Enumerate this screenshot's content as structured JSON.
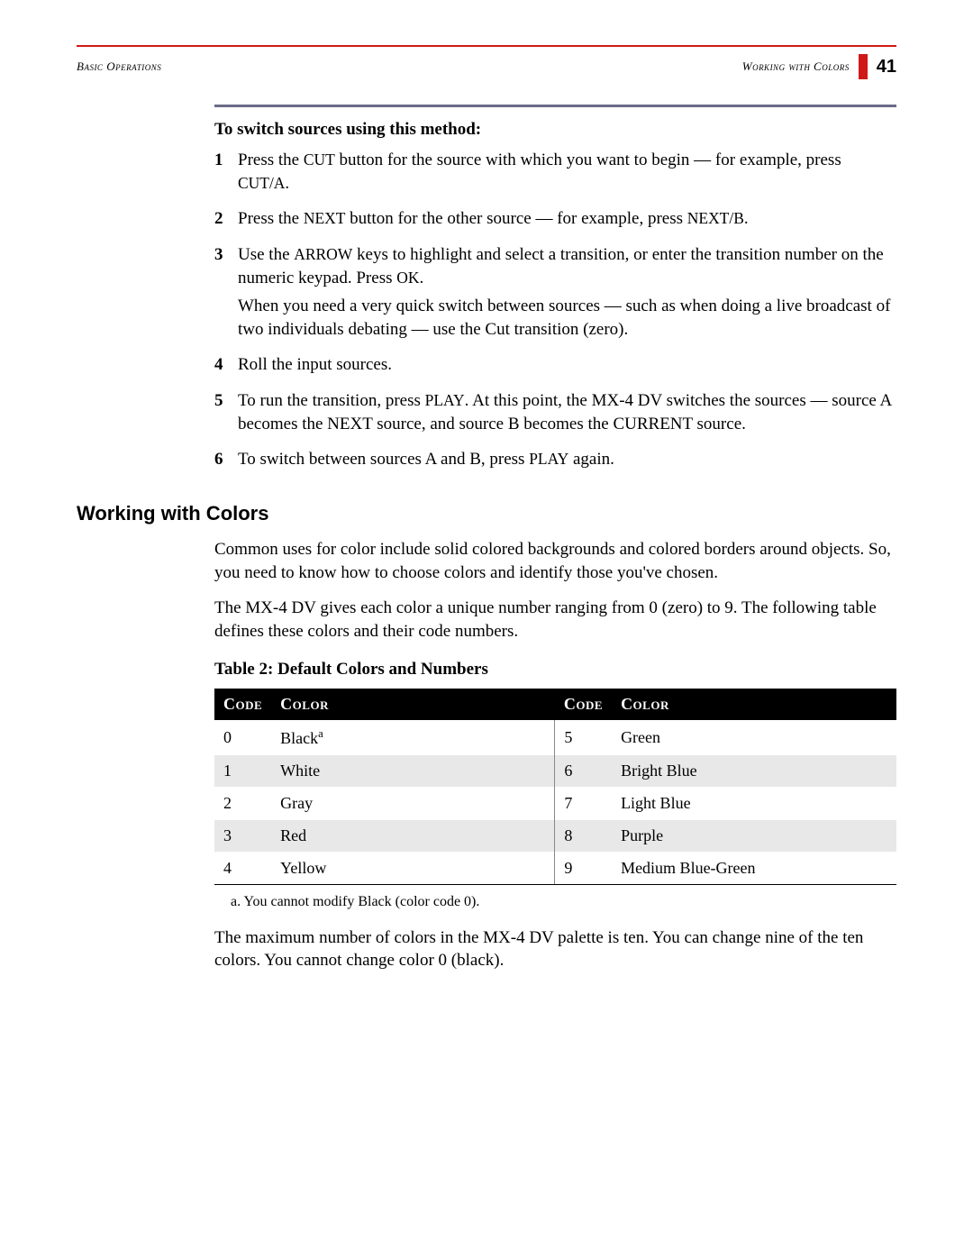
{
  "header": {
    "left": "Basic Operations",
    "right": "Working with Colors",
    "page_number": "41",
    "accent_color": "#d01818"
  },
  "instructions": {
    "title": "To switch sources using this method:",
    "steps": [
      {
        "num": "1",
        "paras": [
          "Press the <sc>CUT</sc> button for the source with which you want to begin — for example, press <sc>CUT/A</sc>."
        ]
      },
      {
        "num": "2",
        "paras": [
          "Press the <sc>NEXT</sc> button for the other source — for example, press <sc>NEXT/B</sc>."
        ]
      },
      {
        "num": "3",
        "paras": [
          "Use the <sc>ARROW</sc> keys to highlight and select a transition, or enter the transition number on the numeric keypad. Press <sc>OK</sc>.",
          "When you need a very quick switch between sources — such as when doing a live broadcast of two individuals debating — use the Cut transition (zero)."
        ]
      },
      {
        "num": "4",
        "paras": [
          "Roll the input sources."
        ]
      },
      {
        "num": "5",
        "paras": [
          "To run the transition, press <sc>PLAY</sc>. At this point, the MX-4 DV switches the sources — source A becomes the NEXT source, and source B becomes the CURRENT source."
        ]
      },
      {
        "num": "6",
        "paras": [
          "To switch between sources A and B, press <sc>PLAY</sc> again."
        ]
      }
    ]
  },
  "section": {
    "heading": "Working with Colors",
    "paras": [
      "Common uses for color include solid colored backgrounds and colored borders around objects. So, you need to know how to choose colors and identify those you've chosen.",
      "The MX-4 DV gives each color a unique number ranging from 0 (zero) to 9. The following table defines these colors and their code numbers."
    ],
    "table_caption": "Table 2: Default Colors and Numbers",
    "table": {
      "columns": [
        "Code",
        "Color",
        "Code",
        "Color"
      ],
      "rows": [
        {
          "alt": false,
          "cells": [
            "0",
            "Black<sup>a</sup>",
            "5",
            "Green"
          ]
        },
        {
          "alt": true,
          "cells": [
            "1",
            "White",
            "6",
            "Bright Blue"
          ]
        },
        {
          "alt": false,
          "cells": [
            "2",
            "Gray",
            "7",
            "Light Blue"
          ]
        },
        {
          "alt": true,
          "cells": [
            "3",
            "Red",
            "8",
            "Purple"
          ]
        },
        {
          "alt": false,
          "cells": [
            "4",
            "Yellow",
            "9",
            "Medium Blue-Green"
          ]
        }
      ],
      "header_bg": "#000000",
      "header_fg": "#ffffff",
      "alt_row_bg": "#e8e8e8"
    },
    "footnote": "a.  You cannot modify Black (color code 0).",
    "closing": "The maximum number of colors in the MX-4 DV palette is ten. You can change nine of the ten colors. You cannot change color 0 (black)."
  }
}
